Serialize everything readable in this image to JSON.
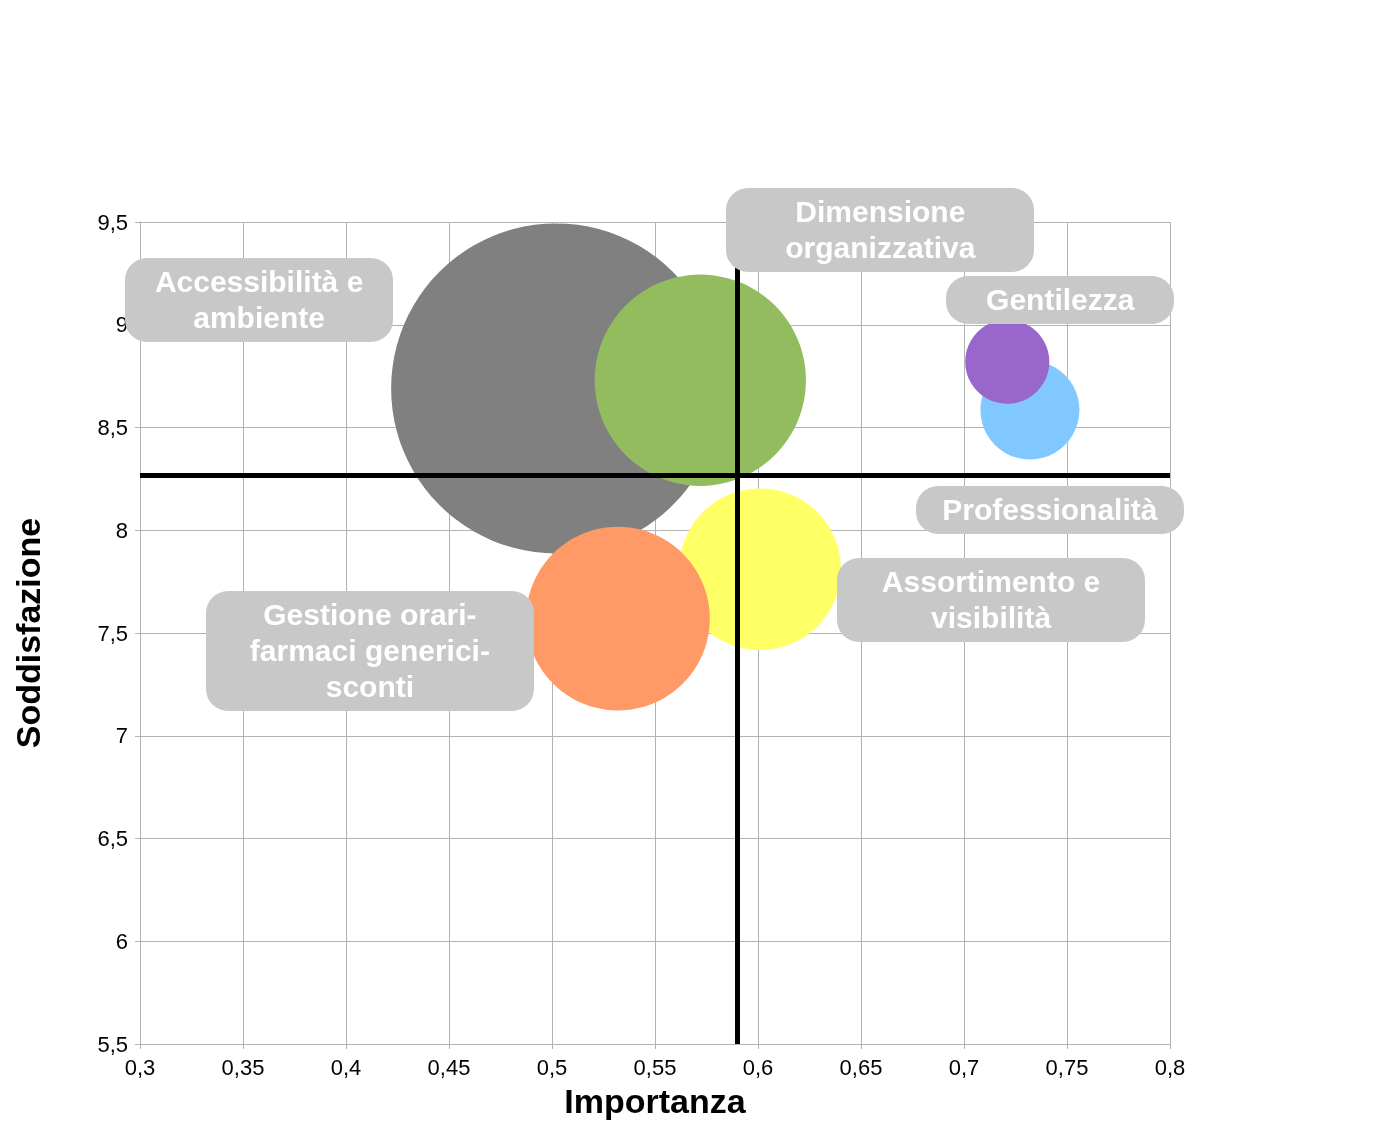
{
  "chart_data": {
    "type": "bubble",
    "xlabel": "Importanza",
    "ylabel": "Soddisfazione",
    "xlim": [
      0.3,
      0.8
    ],
    "xticks": [
      {
        "value": 0.3,
        "label": "0,3"
      },
      {
        "value": 0.35,
        "label": "0,35"
      },
      {
        "value": 0.4,
        "label": "0,4"
      },
      {
        "value": 0.45,
        "label": "0,45"
      },
      {
        "value": 0.5,
        "label": "0,5"
      },
      {
        "value": 0.55,
        "label": "0,55"
      },
      {
        "value": 0.6,
        "label": "0,6"
      },
      {
        "value": 0.65,
        "label": "0,65"
      },
      {
        "value": 0.7,
        "label": "0,7"
      },
      {
        "value": 0.75,
        "label": "0,75"
      },
      {
        "value": 0.8,
        "label": "0,8"
      }
    ],
    "ylim": [
      5.5,
      9.5
    ],
    "yticks": [
      {
        "value": 5.5,
        "label": "5,5"
      },
      6,
      {
        "value": 6.5,
        "label": "6,5"
      },
      7,
      {
        "value": 7.5,
        "label": "7,5"
      },
      8,
      {
        "value": 8.5,
        "label": "8,5"
      },
      9,
      {
        "value": 9.5,
        "label": "9,5"
      }
    ],
    "grid": true,
    "legend": false,
    "ref_lines": [
      {
        "axis": "x",
        "value": 0.59,
        "color": "#000000"
      },
      {
        "axis": "y",
        "value": 8.27,
        "color": "#000000"
      }
    ],
    "series": [
      {
        "name": "Accessibilità e ambiente",
        "color": "#808080",
        "x": [
          0.502
        ],
        "values": [
          8.69
        ],
        "sizes": [
          1
        ]
      },
      {
        "name": "Dimensione organizzativa",
        "color": "#92bc5e",
        "x": [
          0.572
        ],
        "values": [
          8.73
        ],
        "sizes": [
          0.41
        ]
      },
      {
        "name": "Assortimento e visibilità",
        "color": "#ffff66",
        "x": [
          0.601
        ],
        "values": [
          7.81
        ],
        "sizes": [
          0.24
        ]
      },
      {
        "name": "Gestione orari-farmaci generici-sconti",
        "color": "#ff9966",
        "x": [
          0.532
        ],
        "values": [
          7.57
        ],
        "sizes": [
          0.31
        ]
      },
      {
        "name": "Professionalità",
        "color": "#80c8ff",
        "x": [
          0.732
        ],
        "values": [
          8.585
        ],
        "sizes": [
          0.09
        ]
      },
      {
        "name": "Gentilezza",
        "color": "#9966cc",
        "x": [
          0.721
        ],
        "values": [
          8.82
        ],
        "sizes": [
          0.065
        ]
      }
    ]
  }
}
